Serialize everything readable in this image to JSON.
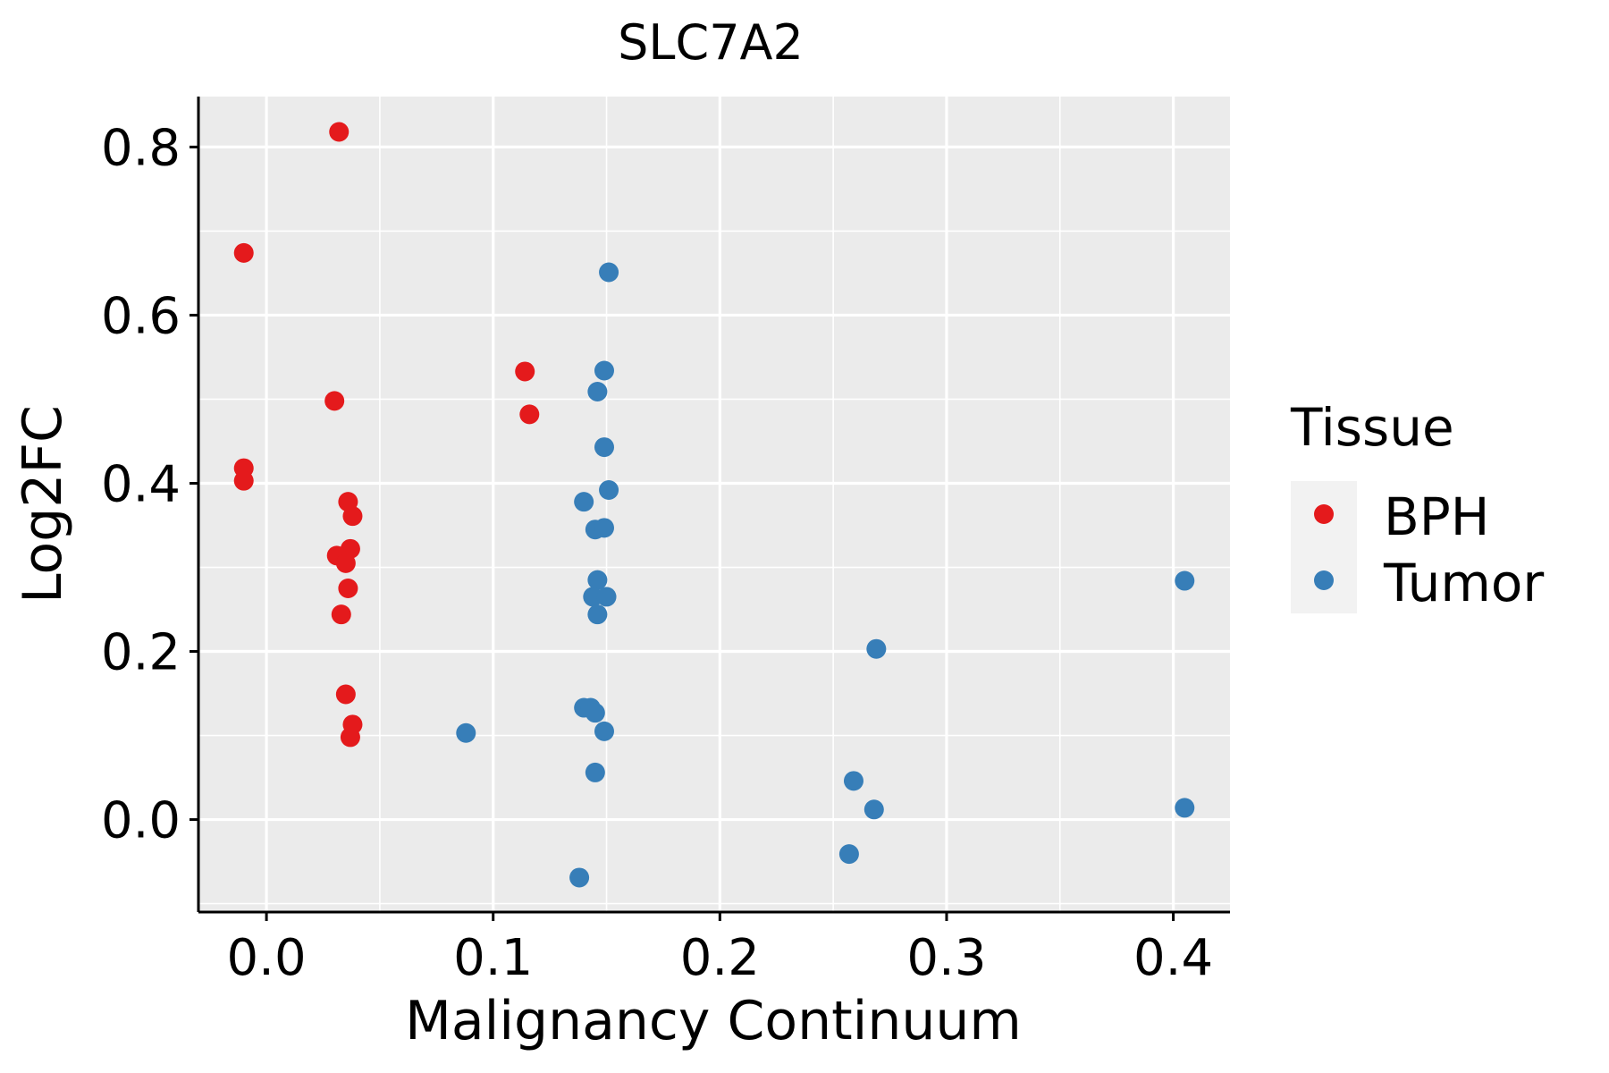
{
  "chart_data": {
    "type": "scatter",
    "title": "SLC7A2",
    "xlabel": "Malignancy Continuum",
    "ylabel": "Log2FC",
    "xlim": [
      -0.03,
      0.425
    ],
    "ylim": [
      -0.11,
      0.86
    ],
    "xticks": [
      0.0,
      0.1,
      0.2,
      0.3,
      0.4
    ],
    "xtick_labels": [
      "0.0",
      "0.1",
      "0.2",
      "0.3",
      "0.4"
    ],
    "yticks": [
      0.0,
      0.2,
      0.4,
      0.6,
      0.8
    ],
    "ytick_labels": [
      "0.0",
      "0.2",
      "0.4",
      "0.6",
      "0.8"
    ],
    "grid": true,
    "legend": {
      "title": "Tissue",
      "placement": "right",
      "entries": [
        "BPH",
        "Tumor"
      ]
    },
    "colors": {
      "BPH": "#E41A1C",
      "Tumor": "#377EB8",
      "panel": "#EBEBEB",
      "grid": "#FFFFFF"
    },
    "series": [
      {
        "name": "BPH",
        "x": [
          0.032,
          -0.01,
          0.03,
          -0.01,
          -0.01,
          0.036,
          0.038,
          0.037,
          0.031,
          0.035,
          0.036,
          0.033,
          0.035,
          0.038,
          0.037,
          0.114,
          0.116
        ],
        "y": [
          0.818,
          0.674,
          0.498,
          0.418,
          0.403,
          0.378,
          0.361,
          0.322,
          0.314,
          0.305,
          0.275,
          0.244,
          0.149,
          0.113,
          0.098,
          0.533,
          0.482
        ]
      },
      {
        "name": "Tumor",
        "x": [
          0.151,
          0.149,
          0.146,
          0.149,
          0.151,
          0.14,
          0.145,
          0.149,
          0.146,
          0.144,
          0.15,
          0.146,
          0.14,
          0.143,
          0.145,
          0.149,
          0.145,
          0.138,
          0.088,
          0.269,
          0.259,
          0.268,
          0.257,
          0.405,
          0.405
        ],
        "y": [
          0.651,
          0.534,
          0.509,
          0.443,
          0.392,
          0.378,
          0.345,
          0.347,
          0.285,
          0.265,
          0.265,
          0.244,
          0.133,
          0.133,
          0.127,
          0.105,
          0.056,
          -0.069,
          0.103,
          0.203,
          0.046,
          0.012,
          -0.041,
          0.284,
          0.014
        ]
      }
    ]
  }
}
